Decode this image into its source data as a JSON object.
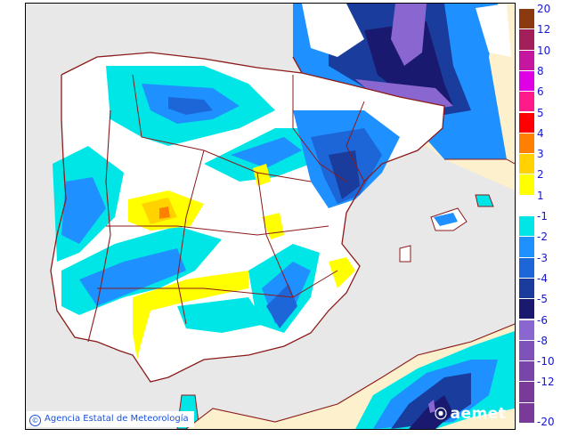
{
  "map": {
    "type": "precipitation-anomaly-map",
    "region": "Iberian Peninsula and Balearic Islands",
    "credit": "Agencia Estatal de Meteorología",
    "credit_symbol": "©",
    "logo": "aemet",
    "colors": {
      "sea": "#e8e8e8",
      "land_outside": "#fdf0cc",
      "borders": "#8b1a1a",
      "neutral": "#ffffff"
    }
  },
  "legend": {
    "positive": [
      {
        "label": "20",
        "color": "#8b3a10"
      },
      {
        "label": "12",
        "color": "#a31f5a"
      },
      {
        "label": "10",
        "color": "#c4169f"
      },
      {
        "label": "8",
        "color": "#e000e6"
      },
      {
        "label": "6",
        "color": "#ff1a8c"
      },
      {
        "label": "5",
        "color": "#ff0000"
      },
      {
        "label": "4",
        "color": "#ff7f00"
      },
      {
        "label": "3",
        "color": "#ffd200"
      },
      {
        "label": "2",
        "color": "#ffff00"
      },
      {
        "label": "1",
        "color": "#ffffff"
      }
    ],
    "negative": [
      {
        "label": "-1",
        "color": "#00e6e6"
      },
      {
        "label": "-2",
        "color": "#1e90ff"
      },
      {
        "label": "-3",
        "color": "#1c66d8"
      },
      {
        "label": "-4",
        "color": "#1a3c9c"
      },
      {
        "label": "-5",
        "color": "#191970"
      },
      {
        "label": "-6",
        "color": "#8a66d0"
      },
      {
        "label": "-8",
        "color": "#7e52b8"
      },
      {
        "label": "-10",
        "color": "#7a45a8"
      },
      {
        "label": "-12",
        "color": "#7a3a98"
      },
      {
        "label": "-20",
        "color": "#7a3a98"
      }
    ]
  }
}
